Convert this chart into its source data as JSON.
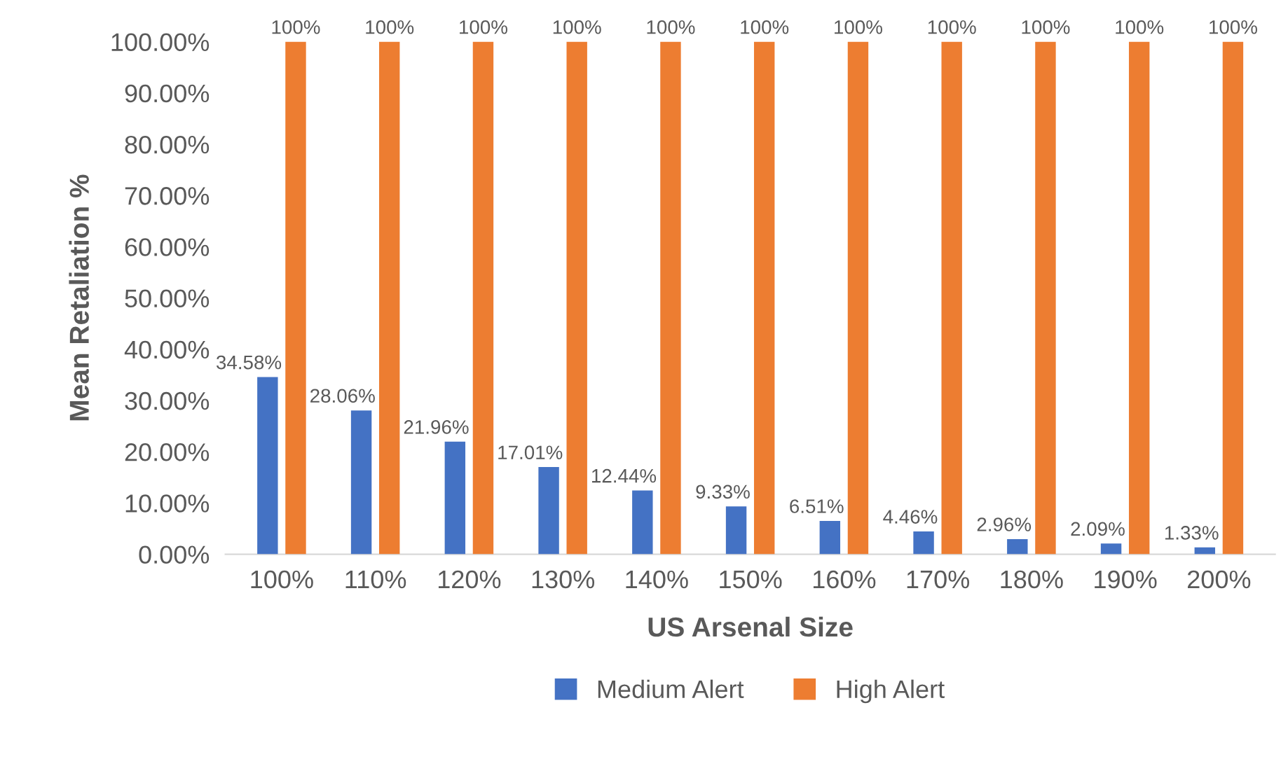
{
  "chart_data": {
    "type": "bar",
    "xlabel": "US Arsenal Size",
    "ylabel": "Mean Retaliation %",
    "categories": [
      "100%",
      "110%",
      "120%",
      "130%",
      "140%",
      "150%",
      "160%",
      "170%",
      "180%",
      "190%",
      "200%"
    ],
    "series": [
      {
        "name": "Medium Alert",
        "color": "#4472c4",
        "values": [
          34.58,
          28.06,
          21.96,
          17.01,
          12.44,
          9.33,
          6.51,
          4.46,
          2.96,
          2.09,
          1.33
        ],
        "value_labels": [
          "34.58%",
          "28.06%",
          "21.96%",
          "17.01%",
          "12.44%",
          "9.33%",
          "6.51%",
          "4.46%",
          "2.96%",
          "2.09%",
          "1.33%"
        ]
      },
      {
        "name": "High Alert",
        "color": "#ed7d31",
        "values": [
          100,
          100,
          100,
          100,
          100,
          100,
          100,
          100,
          100,
          100,
          100
        ],
        "value_labels": [
          "100%",
          "100%",
          "100%",
          "100%",
          "100%",
          "100%",
          "100%",
          "100%",
          "100%",
          "100%",
          "100%"
        ]
      }
    ],
    "ylim": [
      0,
      100
    ],
    "yticks": [
      {
        "value": 0,
        "label": "0.00%"
      },
      {
        "value": 10,
        "label": "10.00%"
      },
      {
        "value": 20,
        "label": "20.00%"
      },
      {
        "value": 30,
        "label": "30.00%"
      },
      {
        "value": 40,
        "label": "40.00%"
      },
      {
        "value": 50,
        "label": "50.00%"
      },
      {
        "value": 60,
        "label": "60.00%"
      },
      {
        "value": 70,
        "label": "70.00%"
      },
      {
        "value": 80,
        "label": "80.00%"
      },
      {
        "value": 90,
        "label": "90.00%"
      },
      {
        "value": 100,
        "label": "100.00%"
      }
    ],
    "grid": false,
    "legend": "bottom"
  }
}
